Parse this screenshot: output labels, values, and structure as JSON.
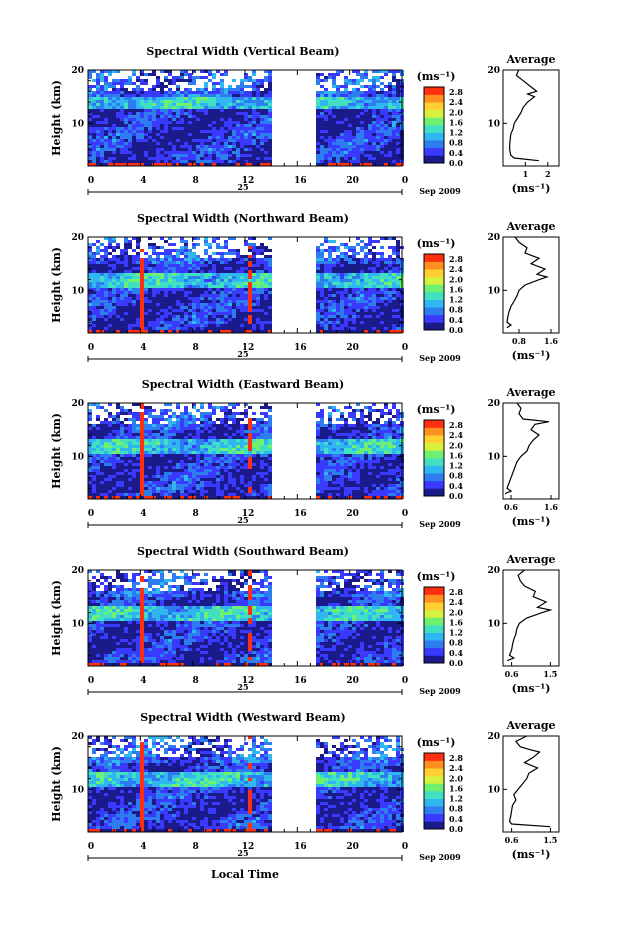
{
  "chart_data": {
    "type": "heatmap",
    "date_label": "Sep 2009",
    "day_label": "25",
    "x_title": "Local Time",
    "y_title": "Height (km)",
    "x_ticks": [
      "0",
      "4",
      "8",
      "12",
      "16",
      "20",
      "0"
    ],
    "xlim_hours": [
      0,
      24
    ],
    "ylim_km": [
      2,
      20
    ],
    "y_ticks": [
      "10",
      "20"
    ],
    "data_gap_hours": [
      14.3,
      17.3
    ],
    "colorbar": {
      "unit": "(ms⁻¹)",
      "ticks": [
        "0.0",
        "0.4",
        "0.8",
        "1.2",
        "1.6",
        "2.0",
        "2.4",
        "2.8"
      ],
      "range": [
        0,
        3.0
      ],
      "colors": [
        "#1a1a8a",
        "#3a3aff",
        "#2e7df0",
        "#30b6f0",
        "#40e0c0",
        "#70f070",
        "#d8f040",
        "#ffd030",
        "#ff9020",
        "#ff3010"
      ]
    },
    "panels": [
      {
        "title": "Spectral Width (Vertical Beam)",
        "avg_title": "Average",
        "avg_xticks": [
          "1",
          "2"
        ],
        "avg_xlim": [
          0,
          2.5
        ],
        "avg_xlabel": "(ms⁻¹)",
        "average_profile": {
          "height_km": [
            3,
            3.5,
            4,
            5,
            6,
            7,
            8,
            9,
            10,
            11,
            12,
            13,
            14,
            15,
            15.5,
            16,
            17,
            18,
            19,
            20
          ],
          "width": [
            1.6,
            0.5,
            0.35,
            0.3,
            0.3,
            0.32,
            0.35,
            0.45,
            0.5,
            0.65,
            0.8,
            0.9,
            1.1,
            1.4,
            1.1,
            1.5,
            1.2,
            0.9,
            0.6,
            0.7
          ]
        }
      },
      {
        "title": "Spectral Width (Northward Beam)",
        "avg_title": "Average",
        "avg_xticks": [
          "0.8",
          "1.6"
        ],
        "avg_xlim": [
          0.4,
          1.8
        ],
        "avg_xlabel": "(ms⁻¹)",
        "average_profile": {
          "height_km": [
            3,
            3.5,
            4,
            5,
            6,
            7,
            8,
            9,
            10,
            11,
            12,
            12.5,
            13,
            14,
            15,
            16,
            17,
            18,
            19,
            20
          ],
          "width": [
            0.5,
            0.6,
            0.5,
            0.52,
            0.55,
            0.6,
            0.68,
            0.75,
            0.8,
            0.95,
            1.3,
            1.5,
            1.25,
            1.45,
            1.1,
            1.3,
            0.95,
            1.0,
            0.8,
            0.7
          ]
        }
      },
      {
        "title": "Spectral Width (Eastward Beam)",
        "avg_title": "Average",
        "avg_xticks": [
          "0.6",
          "1.6"
        ],
        "avg_xlim": [
          0.4,
          1.8
        ],
        "avg_xlabel": "(ms⁻¹)",
        "average_profile": {
          "height_km": [
            3,
            3.5,
            4,
            5,
            6,
            7,
            8,
            9,
            10,
            11,
            12,
            13,
            14,
            15,
            16,
            16.5,
            17,
            18,
            19,
            20
          ],
          "width": [
            0.45,
            0.6,
            0.5,
            0.55,
            0.6,
            0.65,
            0.7,
            0.75,
            0.85,
            1.0,
            1.05,
            1.15,
            1.3,
            1.1,
            1.2,
            1.55,
            0.9,
            0.8,
            0.85,
            0.75
          ]
        }
      },
      {
        "title": "Spectral Width (Southward Beam)",
        "avg_title": "Average",
        "avg_xticks": [
          "0.6",
          "1.5"
        ],
        "avg_xlim": [
          0.4,
          1.7
        ],
        "avg_xlabel": "(ms⁻¹)",
        "average_profile": {
          "height_km": [
            3,
            3.5,
            4,
            5,
            6,
            7,
            8,
            9,
            10,
            11,
            12,
            12.5,
            13,
            14,
            15,
            16,
            17,
            18,
            19,
            20
          ],
          "width": [
            0.5,
            0.65,
            0.55,
            0.6,
            0.62,
            0.65,
            0.7,
            0.72,
            0.78,
            0.95,
            1.3,
            1.5,
            1.2,
            1.4,
            1.1,
            1.15,
            0.9,
            0.8,
            0.75,
            0.9
          ]
        }
      },
      {
        "title": "Spectral Width (Westward Beam)",
        "avg_title": "Average",
        "avg_xticks": [
          "0.6",
          "1.5"
        ],
        "avg_xlim": [
          0.4,
          1.7
        ],
        "avg_xlabel": "(ms⁻¹)",
        "average_profile": {
          "height_km": [
            3,
            3.5,
            4,
            5,
            6,
            7,
            8,
            9,
            10,
            11,
            12,
            13,
            14,
            15,
            16,
            17,
            17.5,
            18,
            19,
            20
          ],
          "width": [
            1.5,
            0.6,
            0.55,
            0.58,
            0.6,
            0.62,
            0.7,
            0.65,
            0.75,
            0.85,
            0.95,
            1.0,
            1.2,
            0.9,
            1.1,
            1.25,
            1.0,
            0.8,
            0.7,
            0.95
          ]
        }
      }
    ]
  }
}
